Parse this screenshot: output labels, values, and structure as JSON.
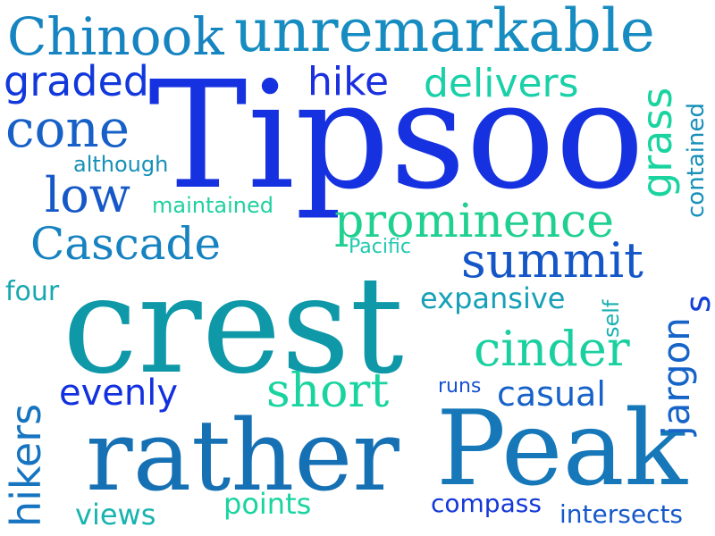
{
  "words": [
    {
      "key": "tipsoo",
      "text": "Tipsoo",
      "color": "#1632e0"
    },
    {
      "key": "crest",
      "text": "crest",
      "color": "#0e98a8"
    },
    {
      "key": "peak",
      "text": "Peak",
      "color": "#1678b8"
    },
    {
      "key": "rather",
      "text": "rather",
      "color": "#1670b4"
    },
    {
      "key": "unremarkable",
      "text": "unremarkable",
      "color": "#168cc0"
    },
    {
      "key": "chinook",
      "text": "Chinook",
      "color": "#1684c0"
    },
    {
      "key": "prominence",
      "text": "prominence",
      "color": "#20d090"
    },
    {
      "key": "summit",
      "text": "summit",
      "color": "#1456c8"
    },
    {
      "key": "cascade",
      "text": "Cascade",
      "color": "#1682c0"
    },
    {
      "key": "cinder",
      "text": "cinder",
      "color": "#1ad0a0"
    },
    {
      "key": "short",
      "text": "short",
      "color": "#1ad4a0"
    },
    {
      "key": "cone",
      "text": "cone",
      "color": "#1660c8"
    },
    {
      "key": "low",
      "text": "low",
      "color": "#1658c8"
    },
    {
      "key": "graded",
      "text": "graded",
      "color": "#1238dc"
    },
    {
      "key": "hike",
      "text": "hike",
      "color": "#1a30e0"
    },
    {
      "key": "delivers",
      "text": "delivers",
      "color": "#1ad0a8"
    },
    {
      "key": "grass",
      "text": "grass",
      "color": "#1ad4a0"
    },
    {
      "key": "contained",
      "text": "contained",
      "color": "#1690b8"
    },
    {
      "key": "although",
      "text": "although",
      "color": "#1690b8"
    },
    {
      "key": "maintained",
      "text": "maintained",
      "color": "#20d0a0"
    },
    {
      "key": "pacific",
      "text": "Pacific",
      "color": "#20c8b0"
    },
    {
      "key": "four",
      "text": "four",
      "color": "#18a8b0"
    },
    {
      "key": "expansive",
      "text": "expansive",
      "color": "#16a0b8"
    },
    {
      "key": "s",
      "text": "s",
      "color": "#1440d8"
    },
    {
      "key": "self",
      "text": "self",
      "color": "#1ab0b0"
    },
    {
      "key": "hikers",
      "text": "hikers",
      "color": "#1674c0"
    },
    {
      "key": "evenly",
      "text": "evenly",
      "color": "#1230e0"
    },
    {
      "key": "runs",
      "text": "runs",
      "color": "#1450d0"
    },
    {
      "key": "casual",
      "text": "casual",
      "color": "#1662c8"
    },
    {
      "key": "jargon",
      "text": "jargon",
      "color": "#1664c8"
    },
    {
      "key": "views",
      "text": "views",
      "color": "#18b4b0"
    },
    {
      "key": "points",
      "text": "points",
      "color": "#1ad4a0"
    },
    {
      "key": "compass",
      "text": "compass",
      "color": "#1438d8"
    },
    {
      "key": "intersects",
      "text": "intersects",
      "color": "#1658c8"
    }
  ]
}
